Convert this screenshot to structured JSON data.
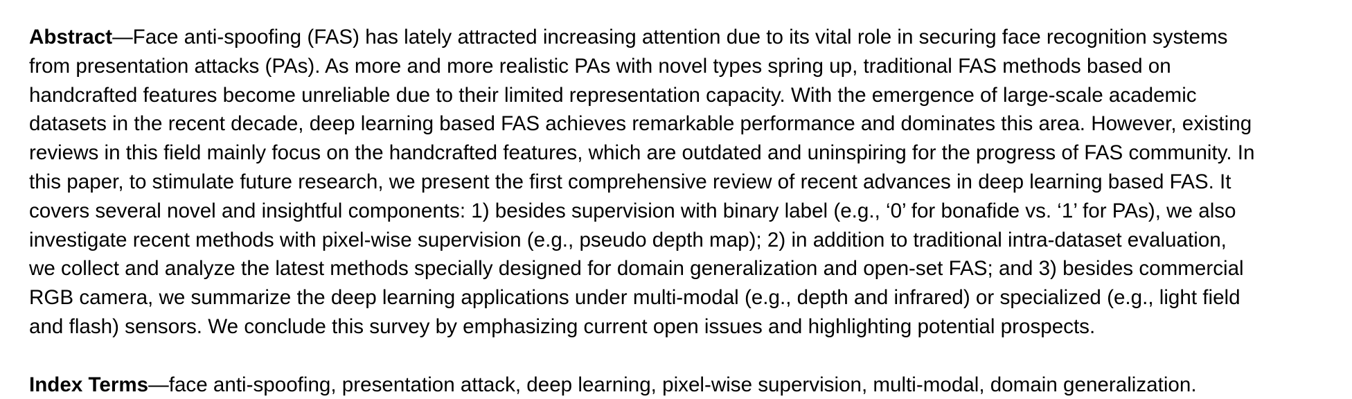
{
  "abstract": {
    "label": "Abstract",
    "lines": [
      "—Face anti-spoofing (FAS) has lately attracted increasing attention due to its vital role in securing face recognition systems",
      "from presentation attacks (PAs). As more and more realistic PAs with novel types spring up, traditional FAS methods based on",
      "handcrafted features become unreliable due to their limited representation capacity. With the emergence of large-scale academic",
      "datasets in the recent decade, deep learning based FAS achieves remarkable performance and dominates this area. However, existing",
      "reviews in this field mainly focus on the handcrafted features, which are outdated and uninspiring for the progress of FAS community. In",
      "this paper, to stimulate future research, we present the first comprehensive review of recent advances in deep learning based FAS. It",
      "covers several novel and insightful components: 1) besides supervision with binary label (e.g., ‘0’ for bonafide vs. ‘1’ for PAs), we also",
      "investigate recent methods with pixel-wise supervision (e.g., pseudo depth map); 2) in addition to traditional intra-dataset evaluation,",
      "we collect and analyze the latest methods specially designed for domain generalization and open-set FAS; and 3) besides commercial",
      "RGB camera, we summarize the deep learning applications under multi-modal (e.g., depth and infrared) or specialized (e.g., light field",
      "and flash) sensors. We conclude this survey by emphasizing current open issues and highlighting potential prospects."
    ]
  },
  "index_terms": {
    "label": "Index Terms",
    "text": "—face anti-spoofing, presentation attack, deep learning, pixel-wise supervision, multi-modal, domain generalization."
  }
}
